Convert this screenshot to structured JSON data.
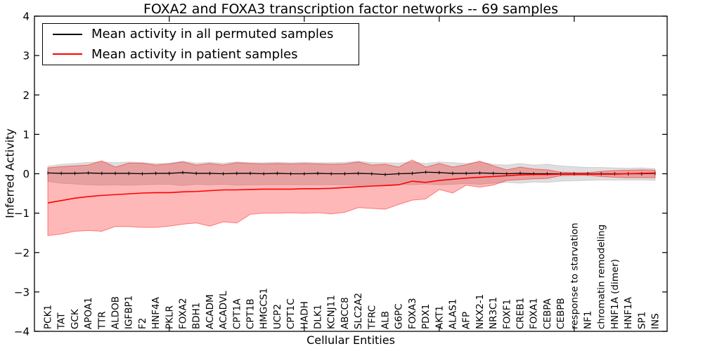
{
  "figure": {
    "title": "FOXA2 and FOXA3 transcription factor networks -- 69 samples"
  },
  "axes": {
    "xlabel": "Cellular Entities",
    "ylabel": "Inferred Activity",
    "ytick_labels": [
      "−4",
      "−3",
      "−2",
      "−1",
      "0",
      "1",
      "2",
      "3",
      "4"
    ],
    "ytick_values": [
      -4,
      -3,
      -2,
      -1,
      0,
      1,
      2,
      3,
      4
    ],
    "major_xtick_indices": [
      9,
      19,
      29,
      39
    ]
  },
  "legend": {
    "items": [
      {
        "label": "Mean activity in all permuted samples",
        "color": "#000000"
      },
      {
        "label": "Mean activity in patient samples",
        "color": "#ff0000"
      }
    ]
  },
  "colors": {
    "permuted_line": "#000000",
    "patient_line": "#ff0000",
    "permuted_band_fill": "rgba(0,0,0,0.13)",
    "permuted_band_stroke": "rgba(0,0,0,0.12)",
    "patient_band_fill": "rgba(255,0,0,0.28)",
    "patient_band_stroke": "rgba(255,0,0,0.45)",
    "frame": "#000000"
  },
  "chart_data": {
    "type": "line",
    "title": "FOXA2 and FOXA3 transcription factor networks -- 69 samples",
    "xlabel": "Cellular Entities",
    "ylabel": "Inferred Activity",
    "ylim": [
      -4,
      4
    ],
    "grid": false,
    "legend_position": "upper left",
    "categories": [
      "PCK1",
      "TAT",
      "GCK",
      "APOA1",
      "TTR",
      "ALDOB",
      "IGFBP1",
      "F2",
      "HNF4A",
      "PKLR",
      "FOXA2",
      "BDH1",
      "ACADM",
      "ACADVL",
      "CPT1A",
      "CPT1B",
      "HMGCS1",
      "UCP2",
      "CPT1C",
      "HADH",
      "DLK1",
      "KCNJ11",
      "ABCC8",
      "SLC2A2",
      "TFRC",
      "ALB",
      "G6PC",
      "FOXA3",
      "PDX1",
      "AKT1",
      "ALAS1",
      "AFP",
      "NKX2-1",
      "NR3C1",
      "FOXF1",
      "CREB1",
      "FOXA1",
      "CEBPA",
      "CEBPB",
      "response to starvation",
      "NF1",
      "chromatin remodeling",
      "HNF1A (dimer)",
      "HNF1A",
      "SP1",
      "INS"
    ],
    "series": [
      {
        "name": "Mean activity in all permuted samples",
        "color": "#000000",
        "values": [
          0.02,
          0.01,
          0.01,
          0.02,
          0.01,
          0.01,
          0.01,
          0.0,
          0.01,
          0.01,
          0.03,
          0.01,
          0.01,
          0.0,
          0.01,
          0.01,
          0.0,
          0.01,
          0.0,
          0.0,
          0.01,
          0.0,
          0.0,
          0.01,
          0.0,
          -0.02,
          0.0,
          0.01,
          0.04,
          0.03,
          0.01,
          0.01,
          0.02,
          0.01,
          0.0,
          0.01,
          0.0,
          0.0,
          0.0,
          0.0,
          0.0,
          0.0,
          0.0,
          0.0,
          0.0,
          0.01
        ],
        "band_upper": [
          0.19,
          0.24,
          0.26,
          0.29,
          0.3,
          0.28,
          0.3,
          0.28,
          0.26,
          0.27,
          0.32,
          0.27,
          0.29,
          0.27,
          0.3,
          0.28,
          0.28,
          0.29,
          0.28,
          0.29,
          0.28,
          0.28,
          0.29,
          0.32,
          0.28,
          0.28,
          0.27,
          0.3,
          0.26,
          0.3,
          0.28,
          0.26,
          0.3,
          0.24,
          0.22,
          0.26,
          0.22,
          0.24,
          0.2,
          0.18,
          0.16,
          0.16,
          0.15,
          0.14,
          0.15,
          0.13
        ],
        "band_lower": [
          -0.2,
          -0.24,
          -0.26,
          -0.28,
          -0.29,
          -0.28,
          -0.29,
          -0.28,
          -0.27,
          -0.27,
          -0.3,
          -0.27,
          -0.28,
          -0.27,
          -0.29,
          -0.28,
          -0.28,
          -0.28,
          -0.28,
          -0.28,
          -0.28,
          -0.28,
          -0.28,
          -0.3,
          -0.27,
          -0.28,
          -0.27,
          -0.28,
          -0.26,
          -0.28,
          -0.27,
          -0.25,
          -0.27,
          -0.24,
          -0.22,
          -0.24,
          -0.21,
          -0.22,
          -0.19,
          -0.18,
          -0.17,
          -0.16,
          -0.16,
          -0.16,
          -0.16,
          -0.17
        ]
      },
      {
        "name": "Mean activity in patient samples",
        "color": "#ff0000",
        "values": [
          -0.74,
          -0.68,
          -0.62,
          -0.58,
          -0.55,
          -0.53,
          -0.51,
          -0.49,
          -0.48,
          -0.48,
          -0.46,
          -0.45,
          -0.43,
          -0.41,
          -0.41,
          -0.4,
          -0.39,
          -0.39,
          -0.39,
          -0.38,
          -0.38,
          -0.37,
          -0.35,
          -0.33,
          -0.31,
          -0.3,
          -0.28,
          -0.19,
          -0.22,
          -0.17,
          -0.14,
          -0.11,
          -0.09,
          -0.07,
          -0.05,
          -0.03,
          -0.02,
          -0.02,
          -0.01,
          -0.01,
          -0.01,
          -0.01,
          -0.01,
          0.0,
          0.01,
          0.02
        ],
        "band_upper": [
          0.15,
          0.18,
          0.2,
          0.22,
          0.33,
          0.17,
          0.27,
          0.27,
          0.22,
          0.25,
          0.3,
          0.22,
          0.26,
          0.22,
          0.28,
          0.26,
          0.25,
          0.26,
          0.25,
          0.26,
          0.25,
          0.24,
          0.25,
          0.3,
          0.22,
          0.24,
          0.17,
          0.35,
          0.17,
          0.26,
          0.17,
          0.23,
          0.32,
          0.2,
          0.1,
          0.17,
          0.12,
          0.1,
          0.04,
          0.03,
          0.03,
          0.06,
          0.08,
          0.09,
          0.1,
          0.09
        ],
        "band_lower": [
          -1.57,
          -1.53,
          -1.46,
          -1.44,
          -1.46,
          -1.34,
          -1.34,
          -1.36,
          -1.36,
          -1.33,
          -1.28,
          -1.25,
          -1.33,
          -1.22,
          -1.25,
          -1.03,
          -1.0,
          -1.0,
          -0.99,
          -1.0,
          -0.99,
          -1.02,
          -0.98,
          -0.86,
          -0.88,
          -0.9,
          -0.78,
          -0.67,
          -0.64,
          -0.4,
          -0.49,
          -0.29,
          -0.34,
          -0.29,
          -0.17,
          -0.15,
          -0.13,
          -0.12,
          -0.05,
          -0.04,
          -0.04,
          -0.07,
          -0.09,
          -0.1,
          -0.1,
          -0.1
        ]
      }
    ]
  }
}
